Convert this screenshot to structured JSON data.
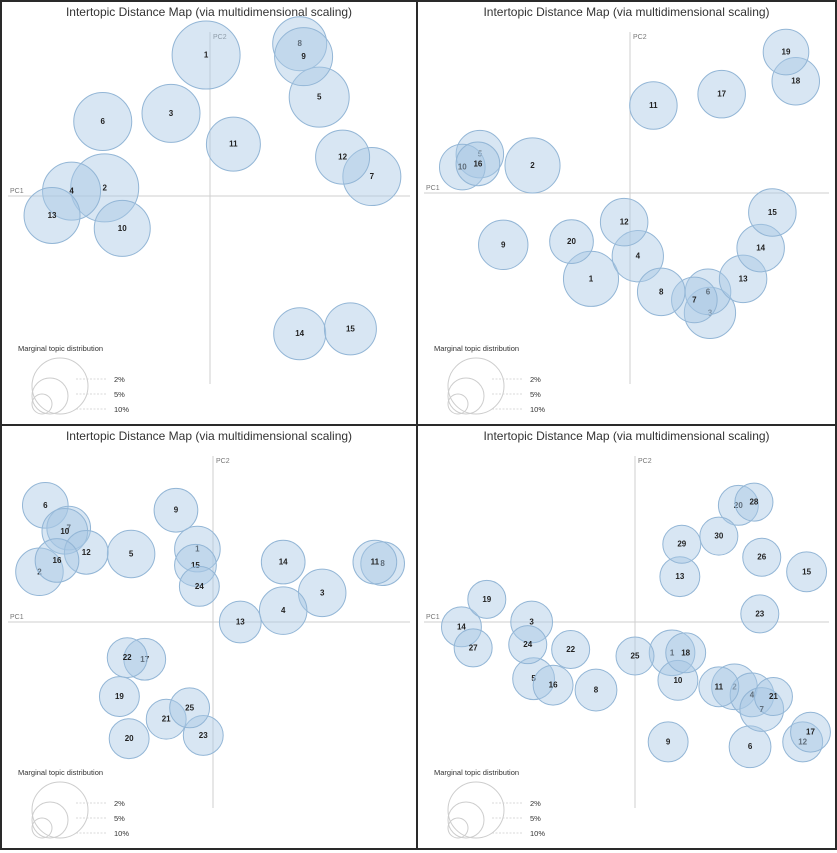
{
  "chart_data": [
    {
      "type": "scatter",
      "title": "Intertopic Distance Map (via multidimensional scaling)",
      "xlabel": "PC1",
      "ylabel": "PC2",
      "xlim": [
        -1,
        1
      ],
      "ylim": [
        -1,
        1
      ],
      "grid": false,
      "legend": {
        "title": "Marginal topic distribution",
        "labels": [
          "2%",
          "5%",
          "10%"
        ],
        "position": "bottom-left"
      },
      "points": [
        {
          "label": "1",
          "x": -0.02,
          "y": 0.87,
          "size": 1.7
        },
        {
          "label": "2",
          "x": -0.54,
          "y": 0.05,
          "size": 1.7
        },
        {
          "label": "3",
          "x": -0.2,
          "y": 0.51,
          "size": 1.45
        },
        {
          "label": "4",
          "x": -0.71,
          "y": 0.03,
          "size": 1.45
        },
        {
          "label": "5",
          "x": 0.56,
          "y": 0.61,
          "size": 1.5
        },
        {
          "label": "6",
          "x": -0.55,
          "y": 0.46,
          "size": 1.45
        },
        {
          "label": "7",
          "x": 0.83,
          "y": 0.12,
          "size": 1.45
        },
        {
          "label": "8",
          "x": 0.46,
          "y": 0.94,
          "size": 1.35
        },
        {
          "label": "9",
          "x": 0.48,
          "y": 0.86,
          "size": 1.45
        },
        {
          "label": "10",
          "x": -0.45,
          "y": -0.2,
          "size": 1.4
        },
        {
          "label": "11",
          "x": 0.12,
          "y": 0.32,
          "size": 1.35
        },
        {
          "label": "12",
          "x": 0.68,
          "y": 0.24,
          "size": 1.35
        },
        {
          "label": "13",
          "x": -0.81,
          "y": -0.12,
          "size": 1.4
        },
        {
          "label": "14",
          "x": 0.46,
          "y": -0.85,
          "size": 1.3
        },
        {
          "label": "15",
          "x": 0.72,
          "y": -0.82,
          "size": 1.3
        }
      ]
    },
    {
      "type": "scatter",
      "title": "Intertopic Distance Map (via multidimensional scaling)",
      "xlabel": "PC1",
      "ylabel": "PC2",
      "xlim": [
        -1,
        1
      ],
      "ylim": [
        -1,
        1
      ],
      "grid": false,
      "legend": {
        "title": "Marginal topic distribution",
        "labels": [
          "2%",
          "5%",
          "10%"
        ],
        "position": "bottom-left"
      },
      "points": [
        {
          "label": "1",
          "x": -0.2,
          "y": -0.53,
          "size": 1.45
        },
        {
          "label": "2",
          "x": -0.5,
          "y": 0.17,
          "size": 1.45
        },
        {
          "label": "3",
          "x": 0.41,
          "y": -0.74,
          "size": 1.35
        },
        {
          "label": "4",
          "x": 0.04,
          "y": -0.39,
          "size": 1.35
        },
        {
          "label": "5",
          "x": -0.77,
          "y": 0.24,
          "size": 1.25
        },
        {
          "label": "6",
          "x": 0.4,
          "y": -0.61,
          "size": 1.2
        },
        {
          "label": "7",
          "x": 0.33,
          "y": -0.66,
          "size": 1.2
        },
        {
          "label": "8",
          "x": 0.16,
          "y": -0.61,
          "size": 1.25
        },
        {
          "label": "9",
          "x": -0.65,
          "y": -0.32,
          "size": 1.3
        },
        {
          "label": "10",
          "x": -0.86,
          "y": 0.16,
          "size": 1.2
        },
        {
          "label": "11",
          "x": 0.12,
          "y": 0.54,
          "size": 1.25
        },
        {
          "label": "12",
          "x": -0.03,
          "y": -0.18,
          "size": 1.25
        },
        {
          "label": "13",
          "x": 0.58,
          "y": -0.53,
          "size": 1.25
        },
        {
          "label": "14",
          "x": 0.67,
          "y": -0.34,
          "size": 1.25
        },
        {
          "label": "15",
          "x": 0.73,
          "y": -0.12,
          "size": 1.25
        },
        {
          "label": "16",
          "x": -0.78,
          "y": 0.18,
          "size": 1.15
        },
        {
          "label": "17",
          "x": 0.47,
          "y": 0.61,
          "size": 1.25
        },
        {
          "label": "18",
          "x": 0.85,
          "y": 0.69,
          "size": 1.25
        },
        {
          "label": "19",
          "x": 0.8,
          "y": 0.87,
          "size": 1.2
        },
        {
          "label": "20",
          "x": -0.3,
          "y": -0.3,
          "size": 1.15
        }
      ]
    },
    {
      "type": "scatter",
      "title": "Intertopic Distance Map (via multidimensional scaling)",
      "xlabel": "PC1",
      "ylabel": "PC2",
      "xlim": [
        -1,
        1
      ],
      "ylim": [
        -1,
        1
      ],
      "grid": false,
      "legend": {
        "title": "Marginal topic distribution",
        "labels": [
          "2%",
          "5%",
          "10%"
        ],
        "position": "bottom-left"
      },
      "points": [
        {
          "label": "1",
          "x": -0.08,
          "y": 0.45,
          "size": 1.2
        },
        {
          "label": "2",
          "x": -0.89,
          "y": 0.31,
          "size": 1.25
        },
        {
          "label": "3",
          "x": 0.56,
          "y": 0.18,
          "size": 1.25
        },
        {
          "label": "4",
          "x": 0.36,
          "y": 0.07,
          "size": 1.25
        },
        {
          "label": "5",
          "x": -0.42,
          "y": 0.42,
          "size": 1.25
        },
        {
          "label": "6",
          "x": -0.86,
          "y": 0.72,
          "size": 1.2
        },
        {
          "label": "7",
          "x": -0.74,
          "y": 0.58,
          "size": 1.15
        },
        {
          "label": "8",
          "x": 0.87,
          "y": 0.36,
          "size": 1.15
        },
        {
          "label": "9",
          "x": -0.19,
          "y": 0.69,
          "size": 1.15
        },
        {
          "label": "10",
          "x": -0.76,
          "y": 0.56,
          "size": 1.2
        },
        {
          "label": "11",
          "x": 0.83,
          "y": 0.37,
          "size": 1.15
        },
        {
          "label": "12",
          "x": -0.65,
          "y": 0.43,
          "size": 1.15
        },
        {
          "label": "13",
          "x": 0.14,
          "y": 0.0,
          "size": 1.1
        },
        {
          "label": "14",
          "x": 0.36,
          "y": 0.37,
          "size": 1.15
        },
        {
          "label": "15",
          "x": -0.09,
          "y": 0.35,
          "size": 1.1
        },
        {
          "label": "16",
          "x": -0.8,
          "y": 0.38,
          "size": 1.15
        },
        {
          "label": "17",
          "x": -0.35,
          "y": -0.23,
          "size": 1.1
        },
        {
          "label": "19",
          "x": -0.48,
          "y": -0.46,
          "size": 1.05
        },
        {
          "label": "20",
          "x": -0.43,
          "y": -0.72,
          "size": 1.05
        },
        {
          "label": "21",
          "x": -0.24,
          "y": -0.6,
          "size": 1.05
        },
        {
          "label": "22",
          "x": -0.44,
          "y": -0.22,
          "size": 1.05
        },
        {
          "label": "23",
          "x": -0.05,
          "y": -0.7,
          "size": 1.05
        },
        {
          "label": "24",
          "x": -0.07,
          "y": 0.22,
          "size": 1.05
        },
        {
          "label": "25",
          "x": -0.12,
          "y": -0.53,
          "size": 1.05
        }
      ]
    },
    {
      "type": "scatter",
      "title": "Intertopic Distance Map (via multidimensional scaling)",
      "xlabel": "PC1",
      "ylabel": "PC2",
      "xlim": [
        -1,
        1
      ],
      "ylim": [
        -1,
        1
      ],
      "grid": false,
      "legend": {
        "title": "Marginal topic distribution",
        "labels": [
          "2%",
          "5%",
          "10%"
        ],
        "position": "bottom-left"
      },
      "points": [
        {
          "label": "1",
          "x": 0.19,
          "y": -0.19,
          "size": 1.2
        },
        {
          "label": "2",
          "x": 0.51,
          "y": -0.4,
          "size": 1.2
        },
        {
          "label": "3",
          "x": -0.53,
          "y": 0.0,
          "size": 1.1
        },
        {
          "label": "4",
          "x": 0.6,
          "y": -0.45,
          "size": 1.15
        },
        {
          "label": "5",
          "x": -0.52,
          "y": -0.35,
          "size": 1.1
        },
        {
          "label": "6",
          "x": 0.59,
          "y": -0.77,
          "size": 1.1
        },
        {
          "label": "7",
          "x": 0.65,
          "y": -0.54,
          "size": 1.15
        },
        {
          "label": "8",
          "x": -0.2,
          "y": -0.42,
          "size": 1.1
        },
        {
          "label": "9",
          "x": 0.17,
          "y": -0.74,
          "size": 1.05
        },
        {
          "label": "10",
          "x": 0.22,
          "y": -0.36,
          "size": 1.05
        },
        {
          "label": "11",
          "x": 0.43,
          "y": -0.4,
          "size": 1.05
        },
        {
          "label": "12",
          "x": 0.86,
          "y": -0.74,
          "size": 1.05
        },
        {
          "label": "13",
          "x": 0.23,
          "y": 0.28,
          "size": 1.05
        },
        {
          "label": "14",
          "x": -0.89,
          "y": -0.03,
          "size": 1.05
        },
        {
          "label": "15",
          "x": 0.88,
          "y": 0.31,
          "size": 1.05
        },
        {
          "label": "16",
          "x": -0.42,
          "y": -0.39,
          "size": 1.05
        },
        {
          "label": "17",
          "x": 0.9,
          "y": -0.68,
          "size": 1.05
        },
        {
          "label": "18",
          "x": 0.26,
          "y": -0.19,
          "size": 1.05
        },
        {
          "label": "19",
          "x": -0.76,
          "y": 0.14,
          "size": 1.0
        },
        {
          "label": "20",
          "x": 0.53,
          "y": 0.72,
          "size": 1.05
        },
        {
          "label": "21",
          "x": 0.71,
          "y": -0.46,
          "size": 1.0
        },
        {
          "label": "22",
          "x": -0.33,
          "y": -0.17,
          "size": 1.0
        },
        {
          "label": "23",
          "x": 0.64,
          "y": 0.05,
          "size": 1.0
        },
        {
          "label": "24",
          "x": -0.55,
          "y": -0.14,
          "size": 1.0
        },
        {
          "label": "25",
          "x": 0.0,
          "y": -0.21,
          "size": 1.0
        },
        {
          "label": "26",
          "x": 0.65,
          "y": 0.4,
          "size": 1.0
        },
        {
          "label": "27",
          "x": -0.83,
          "y": -0.16,
          "size": 1.0
        },
        {
          "label": "28",
          "x": 0.61,
          "y": 0.74,
          "size": 1.0
        },
        {
          "label": "29",
          "x": 0.24,
          "y": 0.48,
          "size": 1.0
        },
        {
          "label": "30",
          "x": 0.43,
          "y": 0.53,
          "size": 1.0
        }
      ]
    }
  ]
}
